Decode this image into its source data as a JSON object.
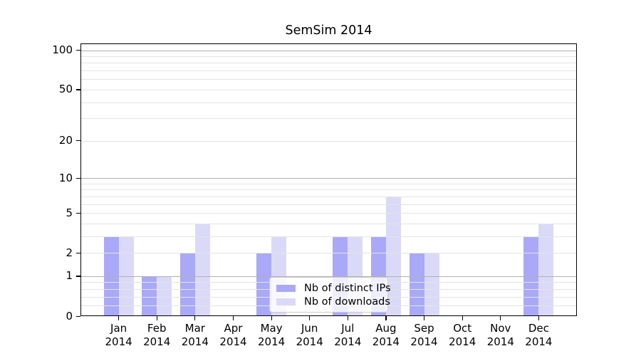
{
  "title": "SemSim 2014",
  "chart_data": {
    "type": "bar",
    "title": "SemSim 2014",
    "categories": [
      "Jan 2014",
      "Feb 2014",
      "Mar 2014",
      "Apr 2014",
      "May 2014",
      "Jun 2014",
      "Jul 2014",
      "Aug 2014",
      "Sep 2014",
      "Oct 2014",
      "Nov 2014",
      "Dec 2014"
    ],
    "series": [
      {
        "name": "Nb of distinct IPs",
        "color": "#a9a9f8",
        "values": [
          3,
          1,
          2,
          0,
          2,
          0,
          3,
          3,
          2,
          0,
          0,
          3
        ]
      },
      {
        "name": "Nb of downloads",
        "color": "#dadaf8",
        "values": [
          3,
          1,
          4,
          0,
          3,
          0,
          3,
          7,
          2,
          0,
          0,
          4
        ]
      }
    ],
    "xlabel": "",
    "ylabel": "",
    "y_axis": {
      "scale": "log10(1+y)",
      "tick_values": [
        0,
        1,
        2,
        5,
        10,
        20,
        50,
        100
      ],
      "tick_labels": [
        "0",
        "1",
        "2",
        "5",
        "10",
        "20",
        "50",
        "100"
      ],
      "major_gridline_values": [
        1,
        10,
        100
      ],
      "minor_gridline_values": [
        0.2,
        0.4,
        0.6,
        0.8,
        2,
        3,
        4,
        5,
        6,
        7,
        8,
        9,
        20,
        30,
        40,
        50,
        60,
        70,
        80,
        90
      ],
      "ylim_top_value": 111
    },
    "legend": {
      "position": "inside-bottom-center",
      "items": [
        "Nb of distinct IPs",
        "Nb of downloads"
      ]
    },
    "grid": "horizontal gridlines drawn above bars",
    "colors": {
      "major_grid": "#b0b0b0",
      "minor_grid": "#e4e4e4",
      "spine": "#000000",
      "background": "#ffffff"
    }
  }
}
